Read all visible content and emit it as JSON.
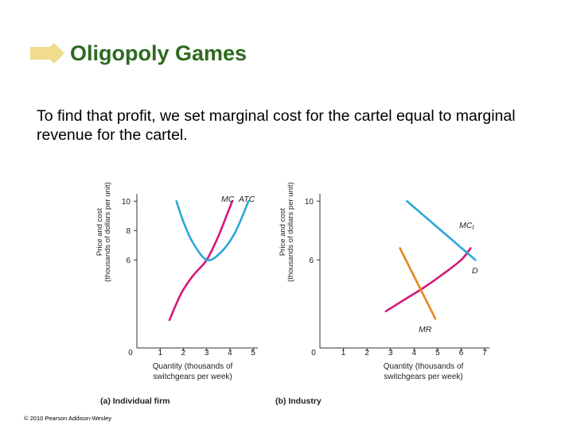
{
  "slide": {
    "title": "Oligopoly Games",
    "body": "To find that profit, we set marginal cost for the cartel equal to marginal revenue for the cartel.",
    "copyright": "© 2010 Pearson Addison-Wesley",
    "accent_color": "#2e6a1f",
    "bullet_color": "#f0dc8c"
  },
  "chart_data": [
    {
      "type": "line",
      "caption": "(a) Individual firm",
      "ylabel_lines": [
        "Price and cost",
        "(thousands of dollars per unit)"
      ],
      "xlabel_lines": [
        "Quantity (thousands of",
        "switchgears per week)"
      ],
      "xlim": [
        0,
        5.2
      ],
      "ylim": [
        0,
        10.5
      ],
      "x_ticks": [
        "0",
        "1",
        "2",
        "3",
        "4",
        "5"
      ],
      "y_ticks": [
        "0",
        "6",
        "8",
        "10"
      ],
      "series": [
        {
          "name": "MC",
          "color": "#d4197a",
          "points": [
            [
              1.4,
              1.9
            ],
            [
              1.9,
              3.7
            ],
            [
              2.4,
              4.9
            ],
            [
              3.0,
              6.0
            ],
            [
              3.5,
              7.6
            ],
            [
              3.9,
              9.2
            ],
            [
              4.1,
              10.0
            ]
          ]
        },
        {
          "name": "ATC",
          "color": "#2aa8d8",
          "points": [
            [
              1.7,
              10.0
            ],
            [
              2.0,
              8.6
            ],
            [
              2.4,
              7.2
            ],
            [
              3.0,
              6.0
            ],
            [
              3.6,
              6.5
            ],
            [
              4.2,
              7.8
            ],
            [
              4.8,
              10.0
            ]
          ]
        }
      ]
    },
    {
      "type": "line",
      "caption": "(b) Industry",
      "ylabel_lines": [
        "Price and cost",
        "(thousands of dollars per unit)"
      ],
      "xlabel_lines": [
        "Quantity (thousands of",
        "switchgears per week)"
      ],
      "xlim": [
        0,
        7.2
      ],
      "ylim": [
        0,
        10.5
      ],
      "x_ticks": [
        "0",
        "1",
        "2",
        "3",
        "4",
        "5",
        "6",
        "7"
      ],
      "y_ticks": [
        "0",
        "6",
        "10"
      ],
      "series": [
        {
          "name": "MC",
          "label_subscript": "I",
          "color": "#d4197a",
          "points": [
            [
              2.8,
              2.5
            ],
            [
              3.6,
              3.3
            ],
            [
              4.4,
              4.1
            ],
            [
              5.2,
              5.0
            ],
            [
              6.0,
              6.0
            ],
            [
              6.4,
              6.8
            ]
          ]
        },
        {
          "name": "D",
          "color": "#2aa8d8",
          "points": [
            [
              3.7,
              10.0
            ],
            [
              6.6,
              6.0
            ]
          ]
        },
        {
          "name": "MR",
          "color": "#e8861a",
          "points": [
            [
              3.4,
              6.8
            ],
            [
              4.9,
              2.0
            ]
          ]
        }
      ]
    }
  ]
}
